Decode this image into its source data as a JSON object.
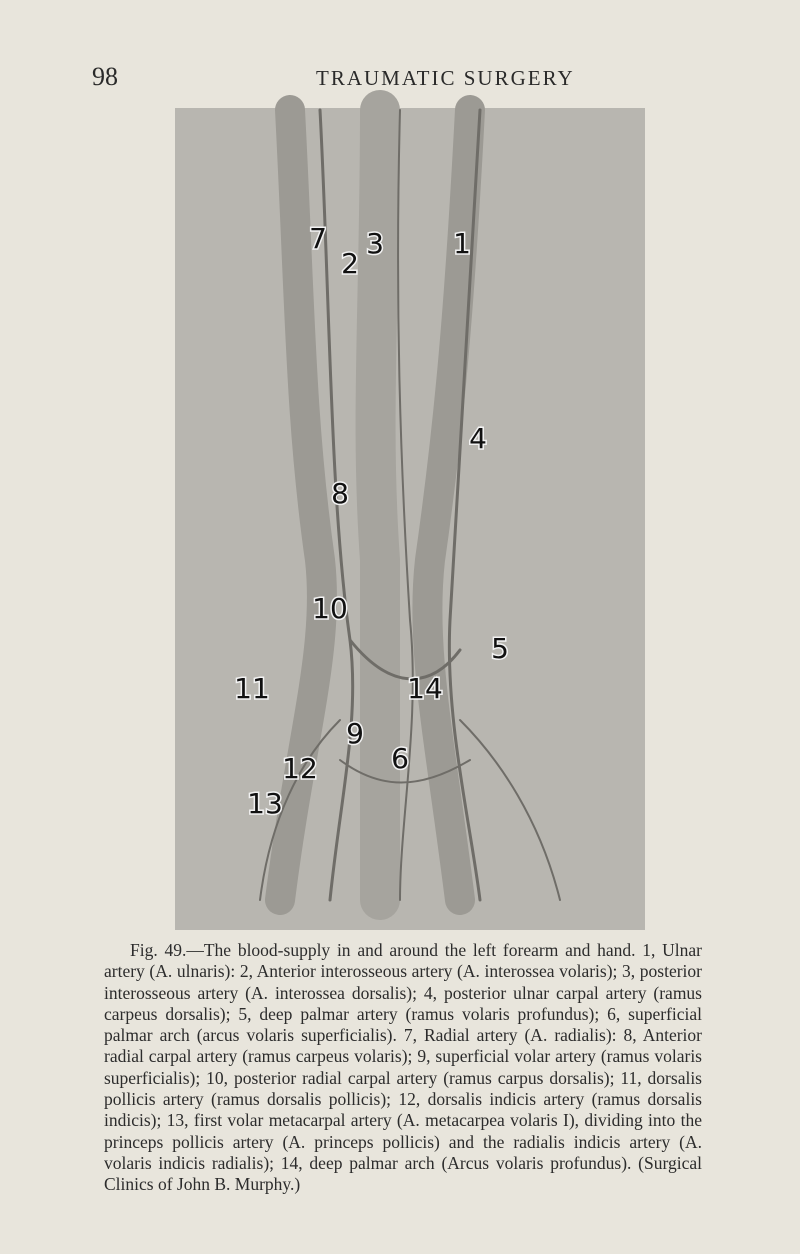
{
  "header": {
    "page_number": "98",
    "title": "TRAUMATIC SURGERY"
  },
  "figure": {
    "labels": [
      "1",
      "2",
      "3",
      "4",
      "5",
      "6",
      "7",
      "8",
      "9",
      "10",
      "11",
      "12",
      "13",
      "14"
    ]
  },
  "caption": "Fig. 49.—The blood-supply in and around the left forearm and hand. 1, Ulnar artery (A. ulnaris): 2, Anterior interosseous artery (A. interossea volaris); 3, posterior interosseous artery (A. interossea dorsalis); 4, posterior ulnar carpal artery (ramus carpeus dorsalis); 5, deep palmar artery (ramus volaris profundus); 6, superficial palmar arch (arcus volaris superficialis). 7, Radial artery (A. radialis): 8, Anterior radial carpal artery (ramus carpeus volaris); 9, superficial volar artery (ramus volaris superficialis); 10, posterior radial carpal artery (ramus carpus dorsalis); 11, dorsalis pollicis artery (ramus dorsalis pollicis); 12, dorsalis indicis artery (ramus dorsalis indicis); 13, first volar metacarpal artery (A. metacarpea volaris I), dividing into the princeps pollicis artery (A. princeps pollicis) and the radialis indicis artery (A. volaris indicis radialis); 14, deep palmar arch (Arcus volaris profundus). (Surgical Clinics of John B. Murphy.)"
}
